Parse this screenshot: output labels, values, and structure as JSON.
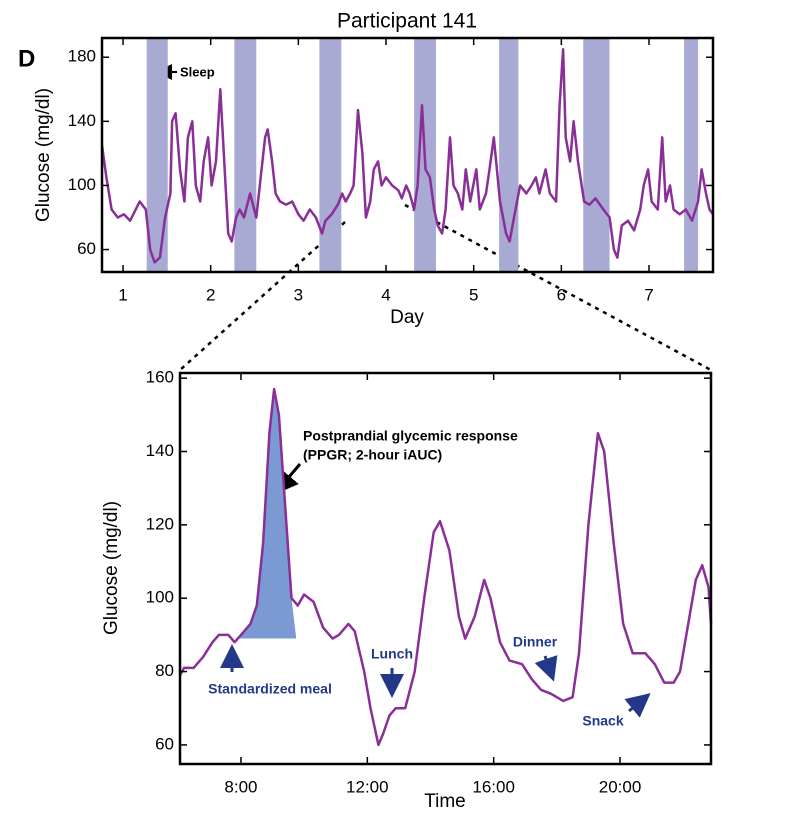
{
  "chart_data": [
    {
      "type": "line",
      "panel_label": "D",
      "title": "Participant 141",
      "x_label": "Day",
      "y_label": "Glucose (mg/dl)",
      "color": "#8a2e98",
      "sleep_color": "#a8aad3",
      "xlim": [
        0.76,
        7.73
      ],
      "ylim": [
        46,
        192
      ],
      "xticks": [
        1,
        2,
        3,
        4,
        5,
        6,
        7
      ],
      "yticks": [
        60,
        100,
        140,
        180
      ],
      "sleep_periods": [
        [
          1.27,
          1.51
        ],
        [
          2.27,
          2.52
        ],
        [
          3.24,
          3.49
        ],
        [
          4.32,
          4.57
        ],
        [
          5.29,
          5.51
        ],
        [
          6.25,
          6.55
        ],
        [
          7.4,
          7.56
        ]
      ],
      "annotations": [
        "Sleep"
      ],
      "x": [
        0.76,
        0.81,
        0.87,
        0.94,
        1.01,
        1.08,
        1.19,
        1.26,
        1.31,
        1.36,
        1.42,
        1.48,
        1.54,
        1.56,
        1.6,
        1.65,
        1.7,
        1.74,
        1.79,
        1.83,
        1.88,
        1.92,
        1.97,
        2.01,
        2.06,
        2.11,
        2.15,
        2.2,
        2.24,
        2.29,
        2.33,
        2.38,
        2.45,
        2.52,
        2.56,
        2.62,
        2.65,
        2.7,
        2.74,
        2.79,
        2.86,
        2.93,
        3.0,
        3.06,
        3.13,
        3.2,
        3.27,
        3.31,
        3.38,
        3.45,
        3.5,
        3.54,
        3.59,
        3.63,
        3.68,
        3.73,
        3.77,
        3.82,
        3.86,
        3.91,
        3.95,
        4.0,
        4.07,
        4.14,
        4.18,
        4.23,
        4.27,
        4.32,
        4.36,
        4.41,
        4.45,
        4.5,
        4.55,
        4.59,
        4.64,
        4.68,
        4.73,
        4.77,
        4.82,
        4.87,
        4.91,
        4.96,
        5.03,
        5.07,
        5.14,
        5.18,
        5.23,
        5.3,
        5.37,
        5.41,
        5.46,
        5.53,
        5.6,
        5.66,
        5.71,
        5.75,
        5.82,
        5.87,
        5.94,
        5.98,
        6.02,
        6.05,
        6.1,
        6.14,
        6.19,
        6.26,
        6.32,
        6.39,
        6.48,
        6.55,
        6.6,
        6.64,
        6.69,
        6.76,
        6.83,
        6.9,
        6.94,
        6.99,
        7.03,
        7.1,
        7.15,
        7.19,
        7.24,
        7.28,
        7.35,
        7.42,
        7.49,
        7.56,
        7.6,
        7.65,
        7.69,
        7.73
      ],
      "values": [
        125,
        105,
        85,
        80,
        82,
        78,
        90,
        85,
        60,
        52,
        55,
        80,
        95,
        140,
        145,
        110,
        90,
        130,
        140,
        100,
        90,
        115,
        130,
        100,
        115,
        160,
        120,
        70,
        65,
        80,
        85,
        80,
        95,
        80,
        100,
        130,
        135,
        115,
        95,
        90,
        88,
        90,
        82,
        78,
        85,
        80,
        70,
        78,
        82,
        88,
        95,
        90,
        95,
        100,
        147,
        120,
        80,
        90,
        110,
        115,
        100,
        105,
        100,
        97,
        92,
        100,
        95,
        85,
        100,
        150,
        110,
        105,
        85,
        75,
        70,
        85,
        130,
        100,
        95,
        85,
        110,
        90,
        110,
        85,
        95,
        110,
        130,
        90,
        70,
        65,
        80,
        100,
        95,
        100,
        105,
        95,
        110,
        95,
        90,
        150,
        185,
        130,
        115,
        140,
        115,
        90,
        88,
        92,
        85,
        80,
        60,
        55,
        75,
        78,
        72,
        85,
        100,
        110,
        90,
        85,
        130,
        90,
        100,
        85,
        82,
        85,
        78,
        90,
        110,
        95,
        85,
        82
      ]
    },
    {
      "type": "line",
      "title": null,
      "x_label": "Time",
      "y_label": "Glucose (mg/dl)",
      "color": "#8a2e98",
      "shade_color": "#7b9ad4",
      "xlim": [
        6.07,
        22.88
      ],
      "ylim": [
        54.8,
        161.4
      ],
      "xticks": [
        {
          "value": 8,
          "label": "8:00"
        },
        {
          "value": 12,
          "label": "12:00"
        },
        {
          "value": 16,
          "label": "16:00"
        },
        {
          "value": 20,
          "label": "20:00"
        }
      ],
      "yticks": [
        60,
        80,
        100,
        120,
        140,
        160
      ],
      "shaded_area": {
        "x_start": 7.9,
        "x_end": 9.75,
        "baseline": 89
      },
      "annotations": [
        "Postprandial glycemic response",
        "(PPGR; 2-hour iAUC)",
        "Standardized meal",
        "Lunch",
        "Dinner",
        "Snack"
      ],
      "x": [
        6.07,
        6.2,
        6.5,
        6.8,
        7.1,
        7.3,
        7.6,
        7.8,
        8.0,
        8.3,
        8.5,
        8.7,
        8.9,
        9.05,
        9.2,
        9.4,
        9.6,
        9.8,
        10.0,
        10.3,
        10.6,
        10.9,
        11.1,
        11.4,
        11.6,
        11.9,
        12.1,
        12.35,
        12.5,
        12.7,
        12.9,
        13.2,
        13.5,
        13.8,
        14.1,
        14.3,
        14.6,
        14.9,
        15.1,
        15.4,
        15.7,
        15.9,
        16.2,
        16.5,
        16.9,
        17.2,
        17.5,
        17.8,
        18.0,
        18.2,
        18.5,
        18.7,
        19.0,
        19.3,
        19.5,
        19.8,
        20.1,
        20.4,
        20.8,
        21.1,
        21.4,
        21.7,
        21.9,
        22.2,
        22.4,
        22.6,
        22.8,
        22.88
      ],
      "values": [
        79,
        81,
        81,
        84,
        88,
        90,
        90,
        88,
        90,
        93,
        98,
        115,
        145,
        157,
        150,
        125,
        100,
        98,
        101,
        99,
        92,
        89,
        90,
        93,
        91,
        80,
        70,
        60,
        63,
        68,
        70,
        70,
        80,
        100,
        118,
        121,
        113,
        95,
        89,
        95,
        105,
        100,
        88,
        83,
        82,
        78,
        75,
        74,
        73,
        72,
        73,
        85,
        120,
        145,
        140,
        115,
        93,
        85,
        85,
        82,
        77,
        77,
        80,
        95,
        105,
        109,
        103,
        93
      ]
    }
  ]
}
